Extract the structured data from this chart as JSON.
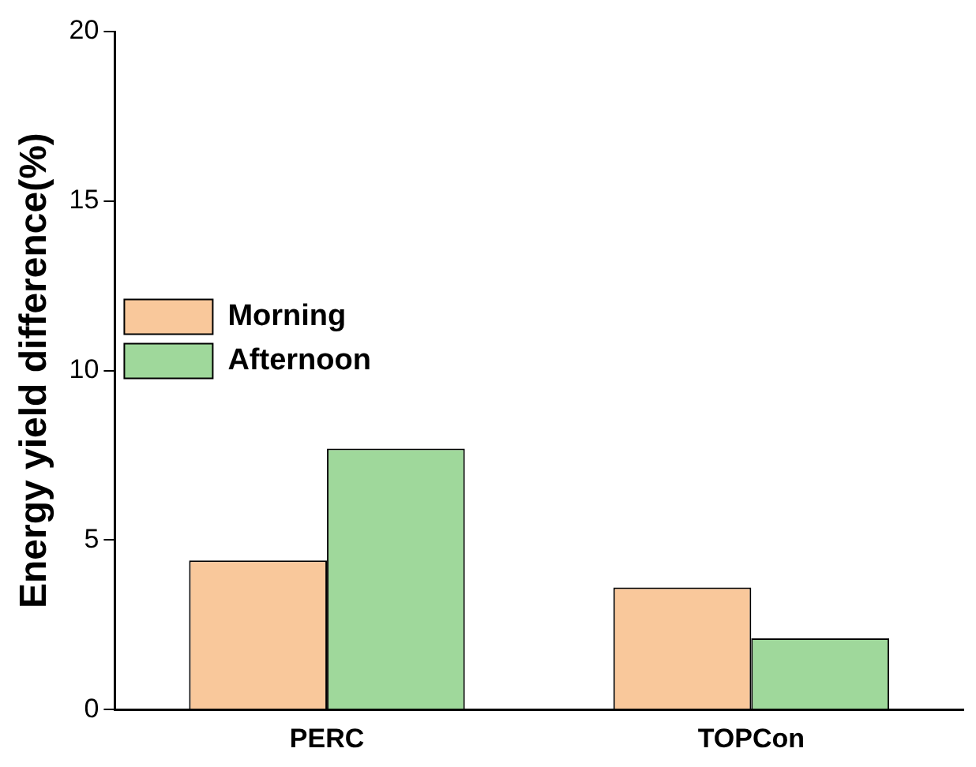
{
  "chart_data": {
    "type": "bar",
    "ylabel": "Energy yield difference(%)",
    "categories": [
      "PERC",
      "TOPCon"
    ],
    "series": [
      {
        "name": "Morning",
        "color": "#f9c89b",
        "values": [
          4.4,
          3.6
        ]
      },
      {
        "name": "Afternoon",
        "color": "#9fd89b",
        "values": [
          7.7,
          2.1
        ]
      }
    ],
    "ylim": [
      0,
      20
    ],
    "yticks": [
      0,
      5,
      10,
      15,
      20
    ],
    "grid": false,
    "legend": "top"
  }
}
